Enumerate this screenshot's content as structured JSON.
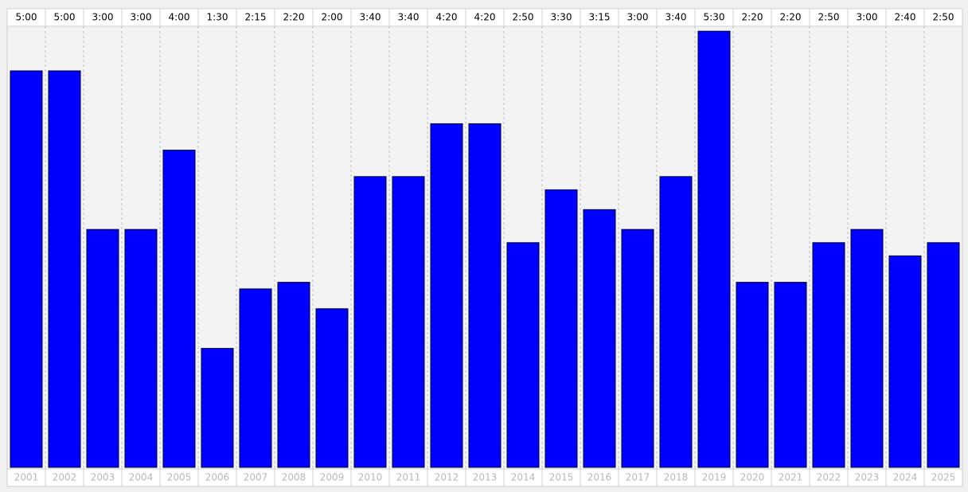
{
  "chart_data": {
    "type": "bar",
    "categories": [
      "2001",
      "2002",
      "2003",
      "2004",
      "2005",
      "2006",
      "2007",
      "2008",
      "2009",
      "2010",
      "2011",
      "2012",
      "2013",
      "2014",
      "2015",
      "2016",
      "2017",
      "2018",
      "2019",
      "2020",
      "2021",
      "2022",
      "2023",
      "2024",
      "2025"
    ],
    "values": [
      300,
      300,
      180,
      180,
      240,
      90,
      135,
      140,
      120,
      220,
      220,
      260,
      260,
      170,
      210,
      195,
      180,
      220,
      330,
      140,
      140,
      170,
      180,
      160,
      170
    ],
    "value_labels": [
      "5:00",
      "5:00",
      "3:00",
      "3:00",
      "4:00",
      "1:30",
      "2:15",
      "2:20",
      "2:00",
      "3:40",
      "3:40",
      "4:20",
      "4:20",
      "2:50",
      "3:30",
      "3:15",
      "3:00",
      "3:40",
      "5:30",
      "2:20",
      "2:20",
      "2:50",
      "3:00",
      "2:40",
      "2:50"
    ],
    "color": "#0000ff"
  }
}
